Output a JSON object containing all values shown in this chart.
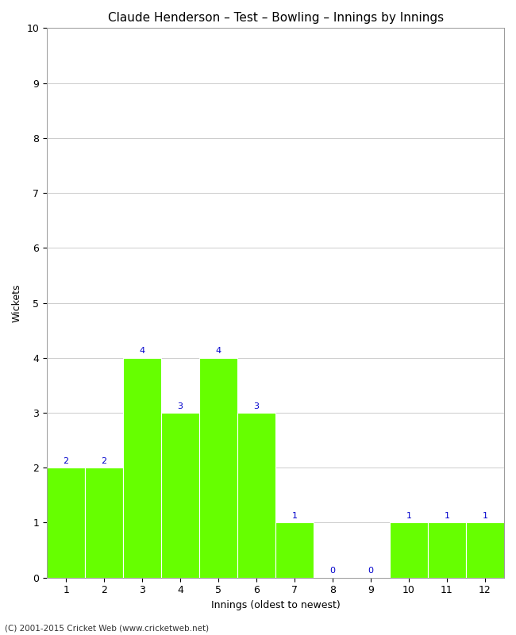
{
  "title": "Claude Henderson – Test – Bowling – Innings by Innings",
  "xlabel": "Innings (oldest to newest)",
  "ylabel": "Wickets",
  "categories": [
    1,
    2,
    3,
    4,
    5,
    6,
    7,
    8,
    9,
    10,
    11,
    12
  ],
  "values": [
    2,
    2,
    4,
    3,
    4,
    3,
    1,
    0,
    0,
    1,
    1,
    1
  ],
  "bar_color": "#66ff00",
  "bar_edge_color": "#66ff00",
  "label_color": "#0000cc",
  "ylim": [
    0,
    10
  ],
  "yticks": [
    0,
    1,
    2,
    3,
    4,
    5,
    6,
    7,
    8,
    9,
    10
  ],
  "background_color": "#ffffff",
  "grid_color": "#cccccc",
  "title_fontsize": 11,
  "axis_label_fontsize": 9,
  "tick_fontsize": 9,
  "bar_label_fontsize": 8,
  "footer": "(C) 2001-2015 Cricket Web (www.cricketweb.net)"
}
